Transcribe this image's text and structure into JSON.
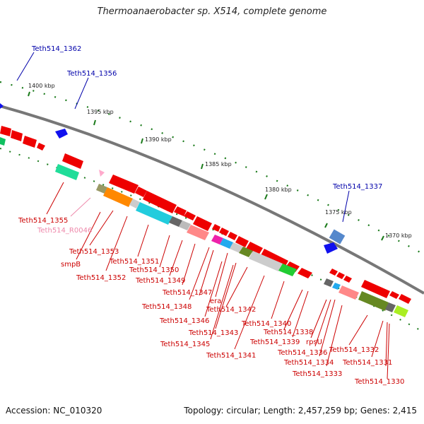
{
  "title": "Thermoanaerobacter sp. X514, complete genome",
  "footer": {
    "accession": "Accession: NC_010320",
    "stats": "Topology: circular; Length: 2,457,259 bp; Genes: 2,415"
  },
  "colors": {
    "backbone": "#777777",
    "red_gene": "#ee0000",
    "red_label": "#cc0000",
    "blue_label": "#0000aa",
    "pink_label": "#ee88aa",
    "tick": "#1a7a1a"
  },
  "scale_ticks": [
    "1400 kbp",
    "1395 kbp",
    "1390 kbp",
    "1385 kbp",
    "1380 kbp",
    "1375 kbp",
    "1370 kbp"
  ],
  "labels": {
    "t1362": "Teth514_1362",
    "t1356": "Teth514_1356",
    "t1337": "Teth514_1337",
    "t1355": "Teth514_1355",
    "tR0046": "Teth514_R0046",
    "t1353": "Teth514_1353",
    "smpB": "smpB",
    "t1352": "Teth514_1352",
    "t1351": "Teth514_1351",
    "t1350": "Teth514_1350",
    "t1349": "Teth514_1349",
    "t1347": "Teth514_1347",
    "t1348": "Teth514_1348",
    "era": "era",
    "t1342": "Teth514_1342",
    "t1346": "Teth514_1346",
    "t1343": "Teth514_1343",
    "t1345": "Teth514_1345",
    "t1340": "Teth514_1340",
    "t1338": "Teth514_1338",
    "t1339": "Teth514_1339",
    "rpsU": "rpsU",
    "t1341": "Teth514_1341",
    "t1336": "Teth514_1336",
    "t1332": "Teth514_1332",
    "t1334": "Teth514_1334",
    "t1331": "Teth514_1331",
    "t1333": "Teth514_1333",
    "t1330": "Teth514_1330"
  }
}
